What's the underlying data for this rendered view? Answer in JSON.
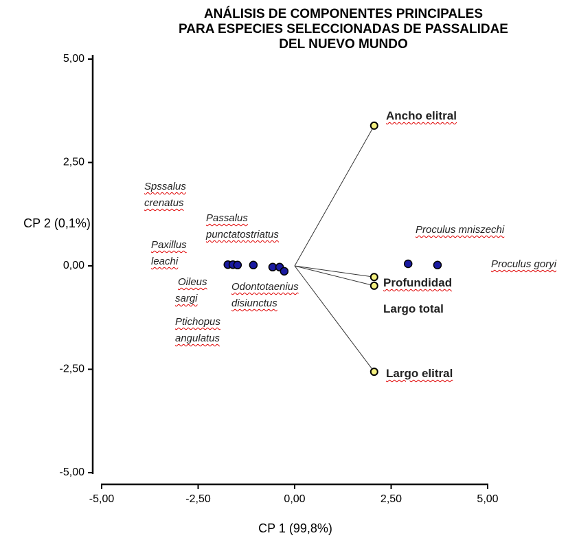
{
  "chart_data": {
    "type": "scatter",
    "title": [
      "ANÁLISIS DE COMPONENTES PRINCIPALES",
      "PARA ESPECIES SELECCIONADAS DE PASSALIDAE",
      "DEL NUEVO MUNDO"
    ],
    "x_label": "CP 1 (99,8%)",
    "y_label": "CP 2 (0,1%)",
    "xlim": [
      -5,
      5
    ],
    "ylim": [
      -5,
      5
    ],
    "xticks": [
      {
        "value": -5,
        "label": "-5,00"
      },
      {
        "value": -2.5,
        "label": "-2,50"
      },
      {
        "value": 0,
        "label": "0,00"
      },
      {
        "value": 2.5,
        "label": "2,50"
      },
      {
        "value": 5,
        "label": "5,00"
      }
    ],
    "yticks": [
      {
        "value": -5,
        "label": "-5,00"
      },
      {
        "value": -2.5,
        "label": "-2,50"
      },
      {
        "value": 0,
        "label": "0,00"
      },
      {
        "value": 2.5,
        "label": "2,50"
      },
      {
        "value": 5,
        "label": "5,00"
      }
    ],
    "points": {
      "color": "#1a1aa0",
      "x": [
        -1.73,
        -1.6,
        -1.48,
        -1.07,
        -0.57,
        -0.39,
        -0.27,
        2.94,
        3.7
      ],
      "y": [
        0.03,
        0.03,
        0.02,
        0.02,
        -0.03,
        -0.03,
        -0.13,
        0.05,
        0.02
      ]
    },
    "vectors": {
      "color": "#f4f080",
      "names": [
        "Ancho elitral",
        "Profundidad",
        "Largo total",
        "Largo elitral"
      ],
      "x": [
        2.06,
        2.06,
        2.06,
        2.06
      ],
      "y": [
        3.39,
        -0.27,
        -0.48,
        -2.56
      ]
    },
    "species_labels": [
      [
        "Spssalus",
        "crenatus"
      ],
      [
        "Passalus",
        "punctatostriatus"
      ],
      [
        "Paxillus",
        "leachi"
      ],
      [
        "Oileus",
        "sargi"
      ],
      [
        "Odontotaenius",
        "disiunctus"
      ],
      [
        "Ptichopus",
        "angulatus"
      ],
      [
        "Proculus mniszechi"
      ],
      [
        "Proculus goryi"
      ]
    ]
  }
}
